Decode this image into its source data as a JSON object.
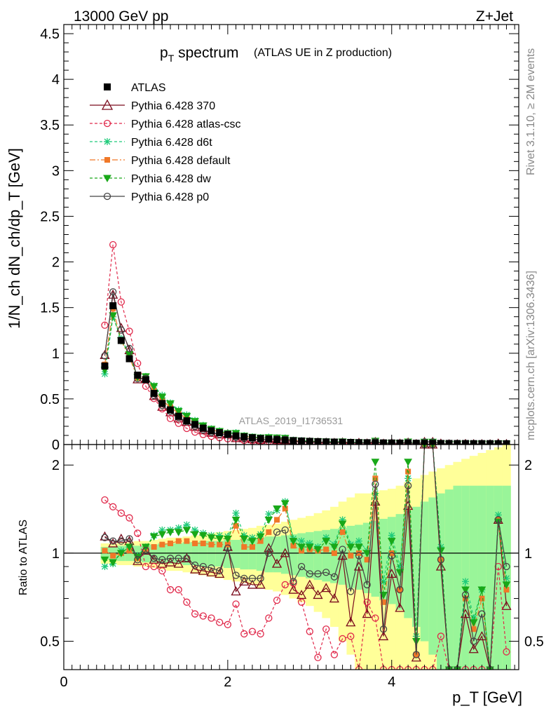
{
  "header": {
    "beam_label": "13000 GeV pp",
    "process_label": "Z+Jet",
    "title_main": "p",
    "title_sub": "T",
    "title_rest": " spectrum",
    "title_paren": "(ATLAS UE in Z production)",
    "rivet_label": "Rivet 3.1.10, ≥ 2M events",
    "mcplots_label": "mcplots.cern.ch [arXiv:1306.3436]",
    "analysis_label": "ATLAS_2019_I1736531"
  },
  "axes": {
    "ylabel_top": "1/N_ch dN_ch/dp_T [GeV]",
    "ylabel_ratio": "Ratio to ATLAS",
    "xlabel": "p_T [GeV]",
    "top_yticks": [
      "0",
      "0.5",
      "1",
      "1.5",
      "2",
      "2.5",
      "3",
      "3.5",
      "4",
      "4.5"
    ],
    "ratio_yticks": [
      "0.5",
      "1",
      "2"
    ],
    "xticks": [
      "0",
      "2",
      "4"
    ]
  },
  "chart_data": {
    "type": "line",
    "title": "pT spectrum (ATLAS UE in Z production)",
    "xlabel": "pT [GeV]",
    "ylabel": "1/Nch dNch/dpT [GeV]",
    "xlim": [
      0,
      5.55
    ],
    "ylim": [
      0,
      4.6
    ],
    "ratio_ylim": [
      0.4,
      2.35
    ],
    "x": [
      0.5,
      0.6,
      0.7,
      0.8,
      0.9,
      1.0,
      1.1,
      1.2,
      1.3,
      1.4,
      1.5,
      1.6,
      1.7,
      1.8,
      1.9,
      2.0,
      2.1,
      2.2,
      2.3,
      2.4,
      2.5,
      2.6,
      2.7,
      2.8,
      2.9,
      3.0,
      3.1,
      3.2,
      3.3,
      3.4,
      3.5,
      3.6,
      3.7,
      3.8,
      3.9,
      4.0,
      4.1,
      4.2,
      4.3,
      4.4,
      4.5,
      4.6,
      4.7,
      4.8,
      4.9,
      5.0,
      5.1,
      5.2,
      5.3,
      5.4
    ],
    "data": {
      "name": "ATLAS",
      "values": [
        0.86,
        1.52,
        1.14,
        0.94,
        0.76,
        0.71,
        0.56,
        0.45,
        0.38,
        0.31,
        0.26,
        0.22,
        0.18,
        0.15,
        0.13,
        0.11,
        0.095,
        0.085,
        0.075,
        0.066,
        0.06,
        0.053,
        0.048,
        0.043,
        0.039,
        0.035,
        0.032,
        0.029,
        0.027,
        0.025,
        0.023,
        0.021,
        0.02,
        0.019,
        0.018,
        0.017,
        0.016,
        0.015,
        0.014,
        0.013,
        0.013,
        0.012,
        0.012,
        0.011,
        0.011,
        0.01,
        0.01,
        0.01,
        0.009,
        0.009
      ]
    },
    "band_inner": [
      0.05,
      0.05,
      0.06,
      0.06,
      0.06,
      0.07,
      0.07,
      0.08,
      0.08,
      0.08,
      0.09,
      0.09,
      0.1,
      0.1,
      0.1,
      0.11,
      0.11,
      0.12,
      0.12,
      0.13,
      0.14,
      0.14,
      0.15,
      0.16,
      0.17,
      0.18,
      0.19,
      0.2,
      0.21,
      0.22,
      0.24,
      0.25,
      0.27,
      0.29,
      0.31,
      0.33,
      0.36,
      0.4,
      0.44,
      0.5,
      0.55,
      0.6,
      0.65,
      0.7,
      0.7,
      0.7,
      0.7,
      0.7,
      0.7,
      0.7
    ],
    "band_outer": [
      0.08,
      0.08,
      0.09,
      0.09,
      0.1,
      0.1,
      0.11,
      0.12,
      0.13,
      0.13,
      0.14,
      0.15,
      0.16,
      0.17,
      0.18,
      0.19,
      0.2,
      0.21,
      0.22,
      0.24,
      0.25,
      0.26,
      0.28,
      0.3,
      0.32,
      0.34,
      0.37,
      0.4,
      0.44,
      0.5,
      0.55,
      0.6,
      0.6,
      0.62,
      0.64,
      0.66,
      0.7,
      0.75,
      0.8,
      0.85,
      0.9,
      0.95,
      1.0,
      1.05,
      1.1,
      1.15,
      1.2,
      1.25,
      1.3,
      1.35
    ],
    "ratio_series": [
      {
        "name": "Pythia 6.428 370",
        "color": "#7a0a1c",
        "dash": "",
        "marker": "triangle-open",
        "ratio": [
          1.14,
          1.08,
          1.12,
          1.1,
          0.94,
          1.02,
          0.95,
          0.92,
          0.93,
          0.92,
          0.96,
          0.88,
          0.87,
          0.86,
          0.85,
          1.05,
          0.74,
          0.8,
          0.78,
          0.78,
          1.04,
          0.92,
          1.0,
          0.75,
          0.72,
          0.78,
          0.72,
          0.76,
          0.7,
          0.98,
          0.58,
          0.9,
          0.62,
          1.5,
          0.52,
          0.85,
          0.65,
          1.45,
          0.44,
          3.0,
          3.0,
          0.9,
          0.35,
          0.35,
          0.62,
          0.47,
          0.52,
          0.35,
          1.3,
          0.66
        ]
      },
      {
        "name": "Pythia 6.428 atlas-csc",
        "color": "#e0284a",
        "dash": "4,3",
        "marker": "circle-open",
        "ratio": [
          1.52,
          1.44,
          1.37,
          1.32,
          1.17,
          0.9,
          0.9,
          0.87,
          0.75,
          0.75,
          0.68,
          0.62,
          0.61,
          0.6,
          0.58,
          0.57,
          0.67,
          0.53,
          0.54,
          0.53,
          0.6,
          0.69,
          0.78,
          0.79,
          0.68,
          0.54,
          0.44,
          0.55,
          0.45,
          0.51,
          0.52,
          0.37,
          0.68,
          0.6,
          0.35,
          0.35,
          0.3,
          0.3,
          0.35,
          0.3,
          0.3,
          0.52,
          0.3,
          0.3,
          0.3,
          0.3,
          0.3,
          0.3,
          0.9,
          0.46
        ]
      },
      {
        "name": "Pythia 6.428 d6t",
        "color": "#1ecb7a",
        "dash": "4,3",
        "marker": "asterisk",
        "ratio": [
          0.9,
          0.92,
          1.02,
          1.05,
          0.98,
          1.05,
          1.15,
          1.2,
          1.2,
          1.22,
          1.25,
          1.2,
          1.17,
          1.15,
          1.15,
          1.14,
          1.37,
          1.15,
          1.13,
          1.16,
          1.36,
          1.4,
          1.5,
          1.12,
          1.1,
          1.08,
          1.05,
          1.13,
          1.07,
          1.3,
          1.07,
          1.1,
          1.02,
          1.6,
          0.8,
          1.15,
          0.9,
          1.8,
          0.52,
          3.0,
          3.0,
          1.05,
          0.35,
          0.35,
          0.8,
          0.6,
          0.75,
          0.35,
          1.35,
          0.82
        ]
      },
      {
        "name": "Pythia 6.428 default",
        "color": "#f07828",
        "dash": "8,3,2,3",
        "marker": "square",
        "ratio": [
          1.02,
          0.98,
          1.0,
          1.02,
          0.96,
          1.03,
          1.05,
          1.07,
          1.08,
          1.1,
          1.1,
          1.08,
          1.08,
          1.07,
          1.07,
          1.07,
          1.24,
          1.05,
          1.05,
          1.1,
          1.18,
          1.3,
          1.42,
          1.06,
          1.02,
          1.03,
          1.02,
          1.03,
          1.0,
          1.18,
          0.98,
          1.0,
          0.95,
          1.8,
          0.68,
          1.0,
          0.75,
          1.9,
          0.45,
          3.0,
          3.0,
          0.95,
          0.35,
          0.35,
          0.7,
          0.55,
          0.7,
          0.35,
          1.3,
          0.75
        ]
      },
      {
        "name": "Pythia 6.428 dw",
        "color": "#18a818",
        "dash": "4,3",
        "marker": "triangle-down",
        "ratio": [
          0.95,
          0.93,
          1.0,
          1.05,
          0.97,
          1.05,
          1.14,
          1.16,
          1.18,
          1.18,
          1.2,
          1.16,
          1.15,
          1.13,
          1.12,
          1.12,
          1.3,
          1.12,
          1.1,
          1.14,
          1.3,
          1.42,
          1.48,
          1.1,
          1.05,
          1.05,
          1.03,
          1.1,
          1.05,
          1.26,
          1.05,
          1.05,
          1.0,
          2.05,
          0.72,
          1.1,
          0.86,
          2.05,
          0.5,
          3.0,
          3.0,
          1.02,
          0.35,
          0.35,
          0.75,
          0.58,
          0.75,
          0.35,
          1.28,
          0.78
        ]
      },
      {
        "name": "Pythia 6.428 p0",
        "color": "#444444",
        "dash": "",
        "marker": "circle-open",
        "ratio": [
          1.13,
          1.1,
          1.1,
          1.12,
          0.95,
          1.02,
          0.96,
          0.95,
          0.96,
          0.96,
          0.96,
          0.91,
          0.9,
          0.89,
          0.87,
          1.04,
          0.84,
          0.82,
          0.82,
          0.82,
          1.0,
          1.18,
          1.2,
          0.8,
          0.9,
          0.85,
          0.85,
          0.86,
          0.83,
          1.03,
          0.74,
          0.98,
          0.78,
          1.72,
          0.55,
          0.98,
          0.75,
          1.7,
          0.45,
          3.0,
          3.0,
          0.95,
          0.35,
          0.35,
          0.72,
          0.5,
          0.62,
          0.35,
          1.3,
          0.9
        ]
      }
    ],
    "legend": [
      {
        "label": "ATLAS"
      },
      {
        "label": "Pythia 6.428 370"
      },
      {
        "label": "Pythia 6.428 atlas-csc"
      },
      {
        "label": "Pythia 6.428 d6t"
      },
      {
        "label": "Pythia 6.428 default"
      },
      {
        "label": "Pythia 6.428 dw"
      },
      {
        "label": "Pythia 6.428 p0"
      }
    ]
  }
}
